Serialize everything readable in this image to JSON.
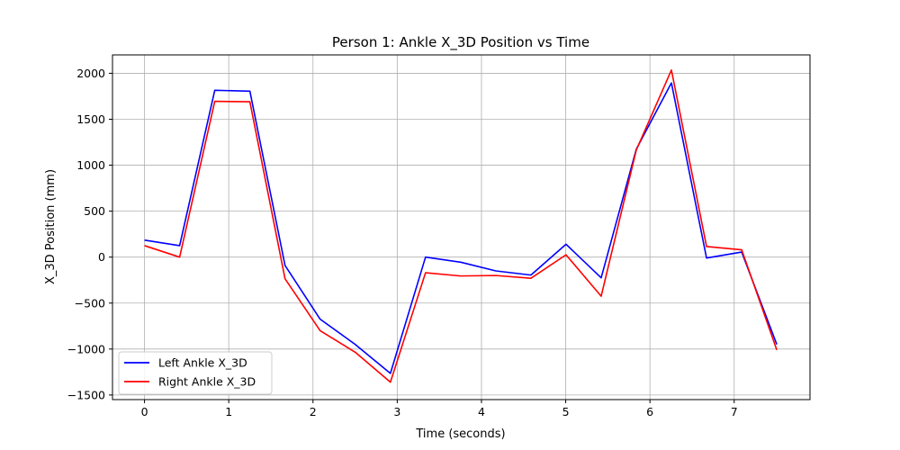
{
  "chart_data": {
    "type": "line",
    "title": "Person 1: Ankle X_3D Position vs Time",
    "xlabel": "Time (seconds)",
    "ylabel": "X_3D Position (mm)",
    "xlim": [
      -0.38,
      7.9
    ],
    "ylim": [
      -1550,
      2200
    ],
    "xticks": [
      0,
      1,
      2,
      3,
      4,
      5,
      6,
      7
    ],
    "yticks": [
      -1500,
      -1000,
      -500,
      0,
      500,
      1000,
      1500,
      2000
    ],
    "ytick_labels": [
      "−1500",
      "−1000",
      "−500",
      "0",
      "500",
      "1000",
      "1500",
      "2000"
    ],
    "grid": true,
    "legend_position": "lower-left",
    "x": [
      0,
      0.417,
      0.834,
      1.251,
      1.668,
      2.085,
      2.502,
      2.919,
      3.336,
      3.753,
      4.17,
      4.587,
      5.004,
      5.421,
      5.838,
      6.255,
      6.672,
      7.089,
      7.506
    ],
    "series": [
      {
        "name": "Left Ankle X_3D",
        "color": "#0000ff",
        "values": [
          185,
          125,
          1815,
          1805,
          -90,
          -675,
          -950,
          -1265,
          0,
          -55,
          -150,
          -195,
          140,
          -225,
          1175,
          1895,
          -10,
          55,
          -950
        ]
      },
      {
        "name": "Right Ankle X_3D",
        "color": "#ff0000",
        "values": [
          125,
          0,
          1695,
          1690,
          -235,
          -800,
          -1035,
          -1360,
          -170,
          -205,
          -200,
          -230,
          25,
          -425,
          1165,
          2035,
          115,
          80,
          -1010
        ]
      }
    ]
  }
}
